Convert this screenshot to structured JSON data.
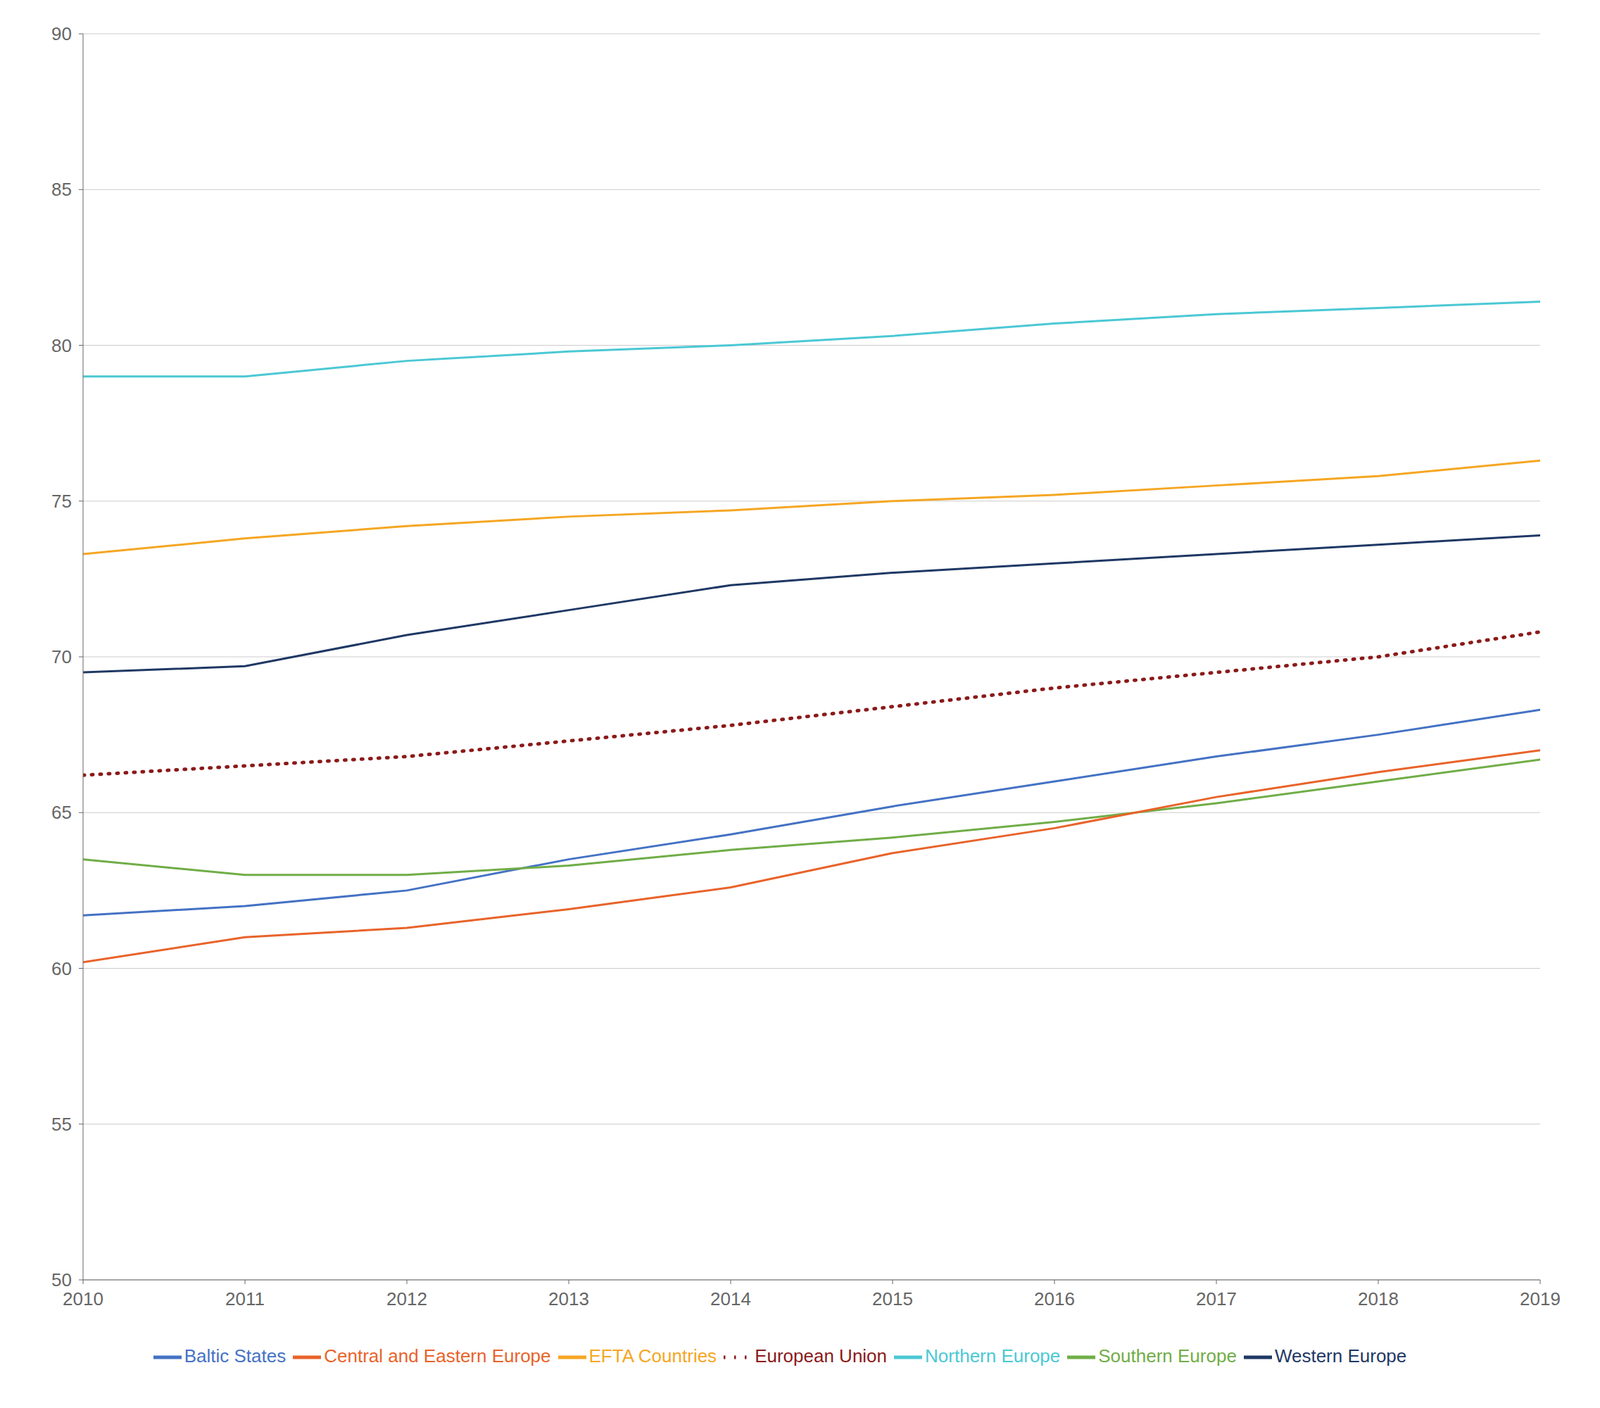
{
  "chart_data": {
    "type": "line",
    "x": [
      2010,
      2011,
      2012,
      2013,
      2014,
      2015,
      2016,
      2017,
      2018,
      2019
    ],
    "series": [
      {
        "name": "Northern Europe",
        "color": "#4BC8D4",
        "line_style": "solid",
        "values": [
          79.0,
          79.0,
          79.5,
          79.8,
          80.0,
          80.3,
          80.7,
          81.0,
          81.2,
          81.4
        ]
      },
      {
        "name": "European Union",
        "color": "#8B1A1A",
        "line_style": "dotted",
        "values": [
          66.2,
          66.5,
          66.8,
          67.3,
          67.8,
          68.4,
          69.0,
          69.5,
          70.0,
          70.8
        ]
      },
      {
        "name": "Baltic States",
        "color": "#4472C4",
        "line_style": "solid",
        "values": [
          61.7,
          62.0,
          62.5,
          63.5,
          64.3,
          65.2,
          66.0,
          66.8,
          67.5,
          68.3
        ]
      },
      {
        "name": "EFTA Countries",
        "color": "#F5A623",
        "line_style": "solid",
        "values": [
          73.3,
          73.8,
          74.2,
          74.5,
          74.7,
          75.0,
          75.2,
          75.5,
          75.8,
          76.3
        ]
      },
      {
        "name": "Southern Europe",
        "color": "#70AD47",
        "line_style": "solid",
        "values": [
          63.5,
          63.0,
          63.0,
          63.3,
          63.8,
          64.2,
          64.7,
          65.3,
          66.0,
          66.7
        ]
      },
      {
        "name": "Central and Eastern Europe",
        "color": "#E8632A",
        "line_style": "solid",
        "values": [
          60.2,
          61.0,
          61.3,
          61.9,
          62.6,
          63.7,
          64.5,
          65.5,
          66.3,
          67.0
        ]
      },
      {
        "name": "Western Europe",
        "color": "#1F3864",
        "line_style": "solid",
        "values": [
          69.5,
          69.7,
          70.7,
          71.5,
          72.3,
          72.7,
          73.0,
          73.3,
          73.6,
          73.9
        ]
      }
    ],
    "xlim": [
      2010,
      2019
    ],
    "xticks": [
      2010,
      2011,
      2012,
      2013,
      2014,
      2015,
      2016,
      2017,
      2018,
      2019
    ],
    "ylim": [
      50,
      90
    ],
    "yticks": [
      50,
      55,
      60,
      65,
      70,
      75,
      80,
      85,
      90
    ],
    "grid": true,
    "legend": "bottom"
  }
}
